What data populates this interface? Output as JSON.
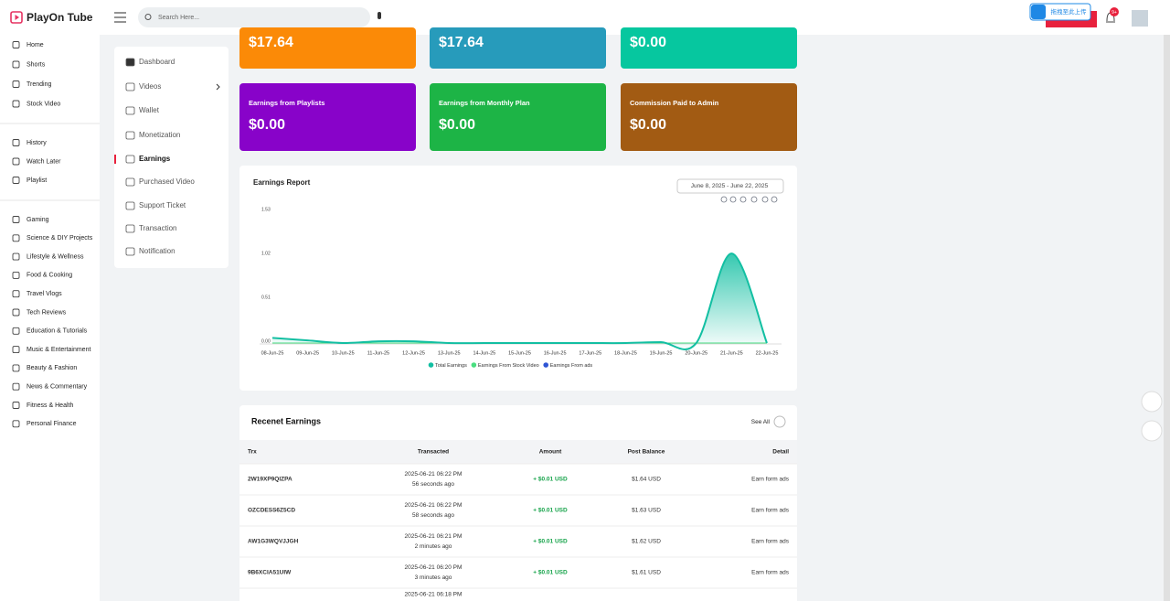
{
  "header": {
    "logo": "PlayOn Tube",
    "search_placeholder": "Search Here...",
    "upload_badge": "拖拽至此上传",
    "notification_count": "9+"
  },
  "sidebar": {
    "groups": [
      [
        "Home",
        "Shorts",
        "Trending",
        "Stock Video"
      ],
      [
        "History",
        "Watch Later",
        "Playlist"
      ],
      [
        "Gaming",
        "Science & DIY Projects",
        "Lifestyle & Wellness",
        "Food & Cooking",
        "Travel Vlogs",
        "Tech Reviews",
        "Education & Tutorials",
        "Music & Entertainment",
        "Beauty & Fashion",
        "News & Commentary",
        "Fitness & Health",
        "Personal Finance"
      ]
    ]
  },
  "menu": {
    "items": [
      "Dashboard",
      "Videos",
      "Wallet",
      "Monetization",
      "Earnings",
      "Purchased Video",
      "Support Ticket",
      "Transaction",
      "Notification"
    ],
    "active": 4
  },
  "stats": [
    {
      "value": "$17.64",
      "color": "#fb8a07"
    },
    {
      "value": "$17.64",
      "color": "#279bbb"
    },
    {
      "value": "$0.00",
      "color": "#06c79f"
    },
    {
      "label": "Earnings from Playlists",
      "value": "$0.00",
      "color": "#8803c9"
    },
    {
      "label": "Earnings from Monthly Plan",
      "value": "$0.00",
      "color": "#1db446"
    },
    {
      "label": "Commission Paid to Admin",
      "value": "$0.00",
      "color": "#a25b13"
    }
  ],
  "earnings_report": {
    "title": "Earnings Report",
    "date_range": "June 8, 2025 - June 22, 2025",
    "chart_data": {
      "type": "line",
      "categories": [
        "08-Jun-25",
        "09-Jun-25",
        "10-Jun-25",
        "11-Jun-25",
        "12-Jun-25",
        "13-Jun-25",
        "14-Jun-25",
        "15-Jun-25",
        "16-Jun-25",
        "17-Jun-25",
        "18-Jun-25",
        "19-Jun-25",
        "20-Jun-25",
        "21-Jun-25",
        "22-Jun-25"
      ],
      "series": [
        {
          "name": "Total Earnings",
          "color": "#12bfa2",
          "values": [
            0.06,
            0.03,
            0,
            0.02,
            0.02,
            0,
            0,
            0,
            0,
            0,
            0,
            0.01,
            0,
            1.04,
            0
          ]
        },
        {
          "name": "Earnings From Stock Video",
          "color": "#4ade80",
          "values": [
            0,
            0,
            0,
            0,
            0,
            0,
            0,
            0,
            0,
            0,
            0,
            0,
            0,
            0,
            0
          ]
        },
        {
          "name": "Earnings From ads",
          "color": "#2f55d4",
          "values": [
            0,
            0,
            0,
            0,
            0,
            0,
            0,
            0,
            0,
            0,
            0,
            0,
            0,
            0,
            0
          ]
        }
      ],
      "ylim": [
        0,
        1.53
      ],
      "yticks": [
        {
          "value": 0,
          "label": "0.00"
        },
        0.51,
        1.02,
        1.53
      ]
    }
  },
  "recent_earnings": {
    "title": "Recenet Earnings",
    "see_all": "See All",
    "columns": [
      "Trx",
      "Transacted",
      "Amount",
      "Post Balance",
      "Detail"
    ],
    "rows": [
      {
        "trx": "2W19XP9QIZPA",
        "transacted": "2025-06-21 06:22 PM",
        "ago": "56 seconds ago",
        "amount": "+ $0.01 USD",
        "post_balance": "$1.64 USD",
        "detail": "Earn form ads"
      },
      {
        "trx": "OZCDESS6Z5CD",
        "transacted": "2025-06-21 06:22 PM",
        "ago": "58 seconds ago",
        "amount": "+ $0.01 USD",
        "post_balance": "$1.63 USD",
        "detail": "Earn form ads"
      },
      {
        "trx": "AW1G3WQVJJGH",
        "transacted": "2025-06-21 06:21 PM",
        "ago": "2 minutes ago",
        "amount": "+ $0.01 USD",
        "post_balance": "$1.62 USD",
        "detail": "Earn form ads"
      },
      {
        "trx": "9B6XCIA51UIW",
        "transacted": "2025-06-21 06:20 PM",
        "ago": "3 minutes ago",
        "amount": "+ $0.01 USD",
        "post_balance": "$1.61 USD",
        "detail": "Earn form ads"
      },
      {
        "transacted": "2025-06-21 06:18 PM"
      }
    ]
  }
}
